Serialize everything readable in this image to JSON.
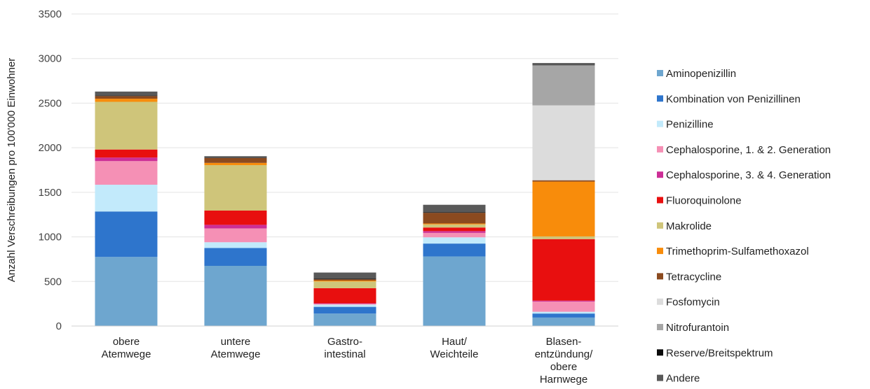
{
  "chart_data": {
    "type": "bar",
    "stacked": true,
    "title": "",
    "xlabel": "",
    "ylabel": "Anzahl Verschreibungen pro 100'000 Einwohner",
    "ylim": [
      0,
      3500
    ],
    "yticks": [
      0,
      500,
      1000,
      1500,
      2000,
      2500,
      3000,
      3500
    ],
    "grid": true,
    "legend_position": "right",
    "categories": [
      [
        "obere",
        "Atemwege"
      ],
      [
        "untere",
        "Atemwege"
      ],
      [
        "Gastro-",
        "intestinal"
      ],
      [
        "Haut/",
        "Weichteile"
      ],
      [
        "Blasen-",
        "entzündung/",
        "obere",
        "Harnwege"
      ]
    ],
    "series": [
      {
        "name": "Aminopenizillin",
        "color": "#6ea6cf",
        "values": [
          775,
          675,
          140,
          780,
          95
        ]
      },
      {
        "name": "Kombination von Penizillinen",
        "color": "#2e75cc",
        "values": [
          510,
          200,
          75,
          145,
          45
        ]
      },
      {
        "name": "Penizilline",
        "color": "#c2eafb",
        "values": [
          300,
          65,
          25,
          70,
          20
        ]
      },
      {
        "name": "Cephalosporine, 1. & 2. Generation",
        "color": "#f590b5",
        "values": [
          265,
          155,
          10,
          50,
          115
        ]
      },
      {
        "name": "Cephalosporine, 3. & 4. Generation",
        "color": "#cc2e96",
        "values": [
          40,
          40,
          5,
          20,
          10
        ]
      },
      {
        "name": "Fluoroquinolone",
        "color": "#e80f0f",
        "values": [
          90,
          160,
          170,
          40,
          690
        ]
      },
      {
        "name": "Makrolide",
        "color": "#cfc57a",
        "values": [
          535,
          510,
          75,
          35,
          30
        ]
      },
      {
        "name": "Trimethoprim-Sulfamethoxazol",
        "color": "#f88c0b",
        "values": [
          35,
          25,
          10,
          10,
          615
        ]
      },
      {
        "name": "Tetracycline",
        "color": "#8b4a1f",
        "values": [
          30,
          55,
          15,
          120,
          15
        ]
      },
      {
        "name": "Fosfomycin",
        "color": "#dcdcdc",
        "values": [
          0,
          0,
          0,
          0,
          840
        ]
      },
      {
        "name": "Nitrofurantoin",
        "color": "#a6a6a6",
        "values": [
          0,
          0,
          0,
          0,
          450
        ]
      },
      {
        "name": "Reserve/Breitspektrum",
        "color": "#0a0a0a",
        "values": [
          5,
          5,
          5,
          5,
          5
        ]
      },
      {
        "name": "Andere",
        "color": "#595959",
        "values": [
          45,
          15,
          70,
          85,
          20
        ]
      }
    ]
  }
}
